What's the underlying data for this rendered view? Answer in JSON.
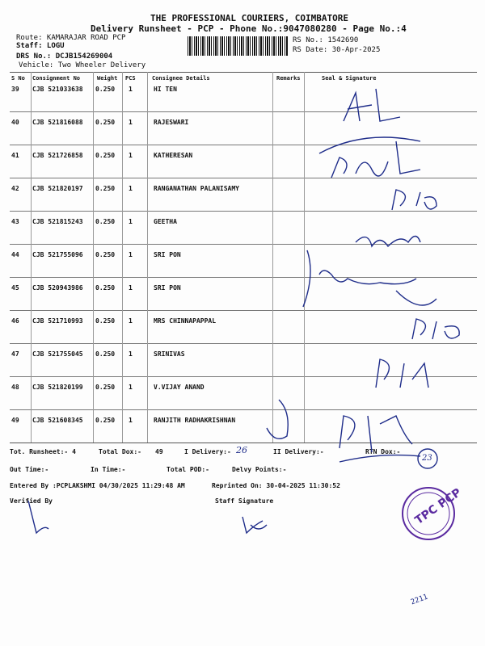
{
  "header": {
    "company": "THE PROFESSIONAL COURIERS, COIMBATORE",
    "subtitle": "Delivery Runsheet - PCP - Phone No.:9047080280 - Page No.:4",
    "route": "Route: KAMARAJAR ROAD PCP",
    "staff": "Staff: LOGU",
    "drs": "DRS No.: DCJB154269004",
    "vehicle": "Vehicle: Two Wheeler Delivery",
    "rs_no": "RS No.: 1542690",
    "rs_date": "RS Date: 30-Apr-2025"
  },
  "columns": [
    "S No",
    "Consignment No",
    "Weight",
    "PCS",
    "Consignee Details",
    "Remarks",
    "Seal & Signature"
  ],
  "rows": [
    {
      "sno": "39",
      "cn": "CJB 521033638",
      "wt": "0.250",
      "pcs": "1",
      "name": "HI TEN"
    },
    {
      "sno": "40",
      "cn": "CJB 521816088",
      "wt": "0.250",
      "pcs": "1",
      "name": "RAJESWARI"
    },
    {
      "sno": "41",
      "cn": "CJB 521726858",
      "wt": "0.250",
      "pcs": "1",
      "name": "KATHERESAN"
    },
    {
      "sno": "42",
      "cn": "CJB 521820197",
      "wt": "0.250",
      "pcs": "1",
      "name": "RANGANATHAN PALANISAMY"
    },
    {
      "sno": "43",
      "cn": "CJB 521815243",
      "wt": "0.250",
      "pcs": "1",
      "name": "GEETHA"
    },
    {
      "sno": "44",
      "cn": "CJB 521755096",
      "wt": "0.250",
      "pcs": "1",
      "name": "SRI PON"
    },
    {
      "sno": "45",
      "cn": "CJB 520943986",
      "wt": "0.250",
      "pcs": "1",
      "name": "SRI PON"
    },
    {
      "sno": "46",
      "cn": "CJB 521710993",
      "wt": "0.250",
      "pcs": "1",
      "name": "MRS CHINNAPAPPAL"
    },
    {
      "sno": "47",
      "cn": "CJB 521755045",
      "wt": "0.250",
      "pcs": "1",
      "name": "SRINIVAS"
    },
    {
      "sno": "48",
      "cn": "CJB 521820199",
      "wt": "0.250",
      "pcs": "1",
      "name": "V.VIJAY ANAND"
    },
    {
      "sno": "49",
      "cn": "CJB 521608345",
      "wt": "0.250",
      "pcs": "1",
      "name": "RANJITH RADHAKRISHNAN"
    }
  ],
  "footer": {
    "tot_runsheet": "Tot. Runsheet:- 4",
    "total_dox": "Total Dox:-",
    "total_dox_val": "49",
    "i_delivery": "I Delivery:-",
    "i_delivery_hand": "26",
    "ii_delivery": "II Delivery:-",
    "rtn_dox": "RTN Dox:-",
    "rtn_hand": "23",
    "out_time": "Out Time:-",
    "in_time": "In Time:-",
    "total_pod": "Total POD:-",
    "delvy_points": "Delvy Points:-",
    "entered_by": "Entered By :PCPLAKSHMI 04/30/2025 11:29:48 AM",
    "reprinted": "Reprinted On: 30-04-2025 11:30:52",
    "verified_by": "Verified By",
    "staff_signature": "Staff Signature",
    "stamp_text": "TPC PCP",
    "page_note": "2211"
  },
  "colors": {
    "ink": "#1f2d8a",
    "stamp": "#5a2aa0"
  }
}
